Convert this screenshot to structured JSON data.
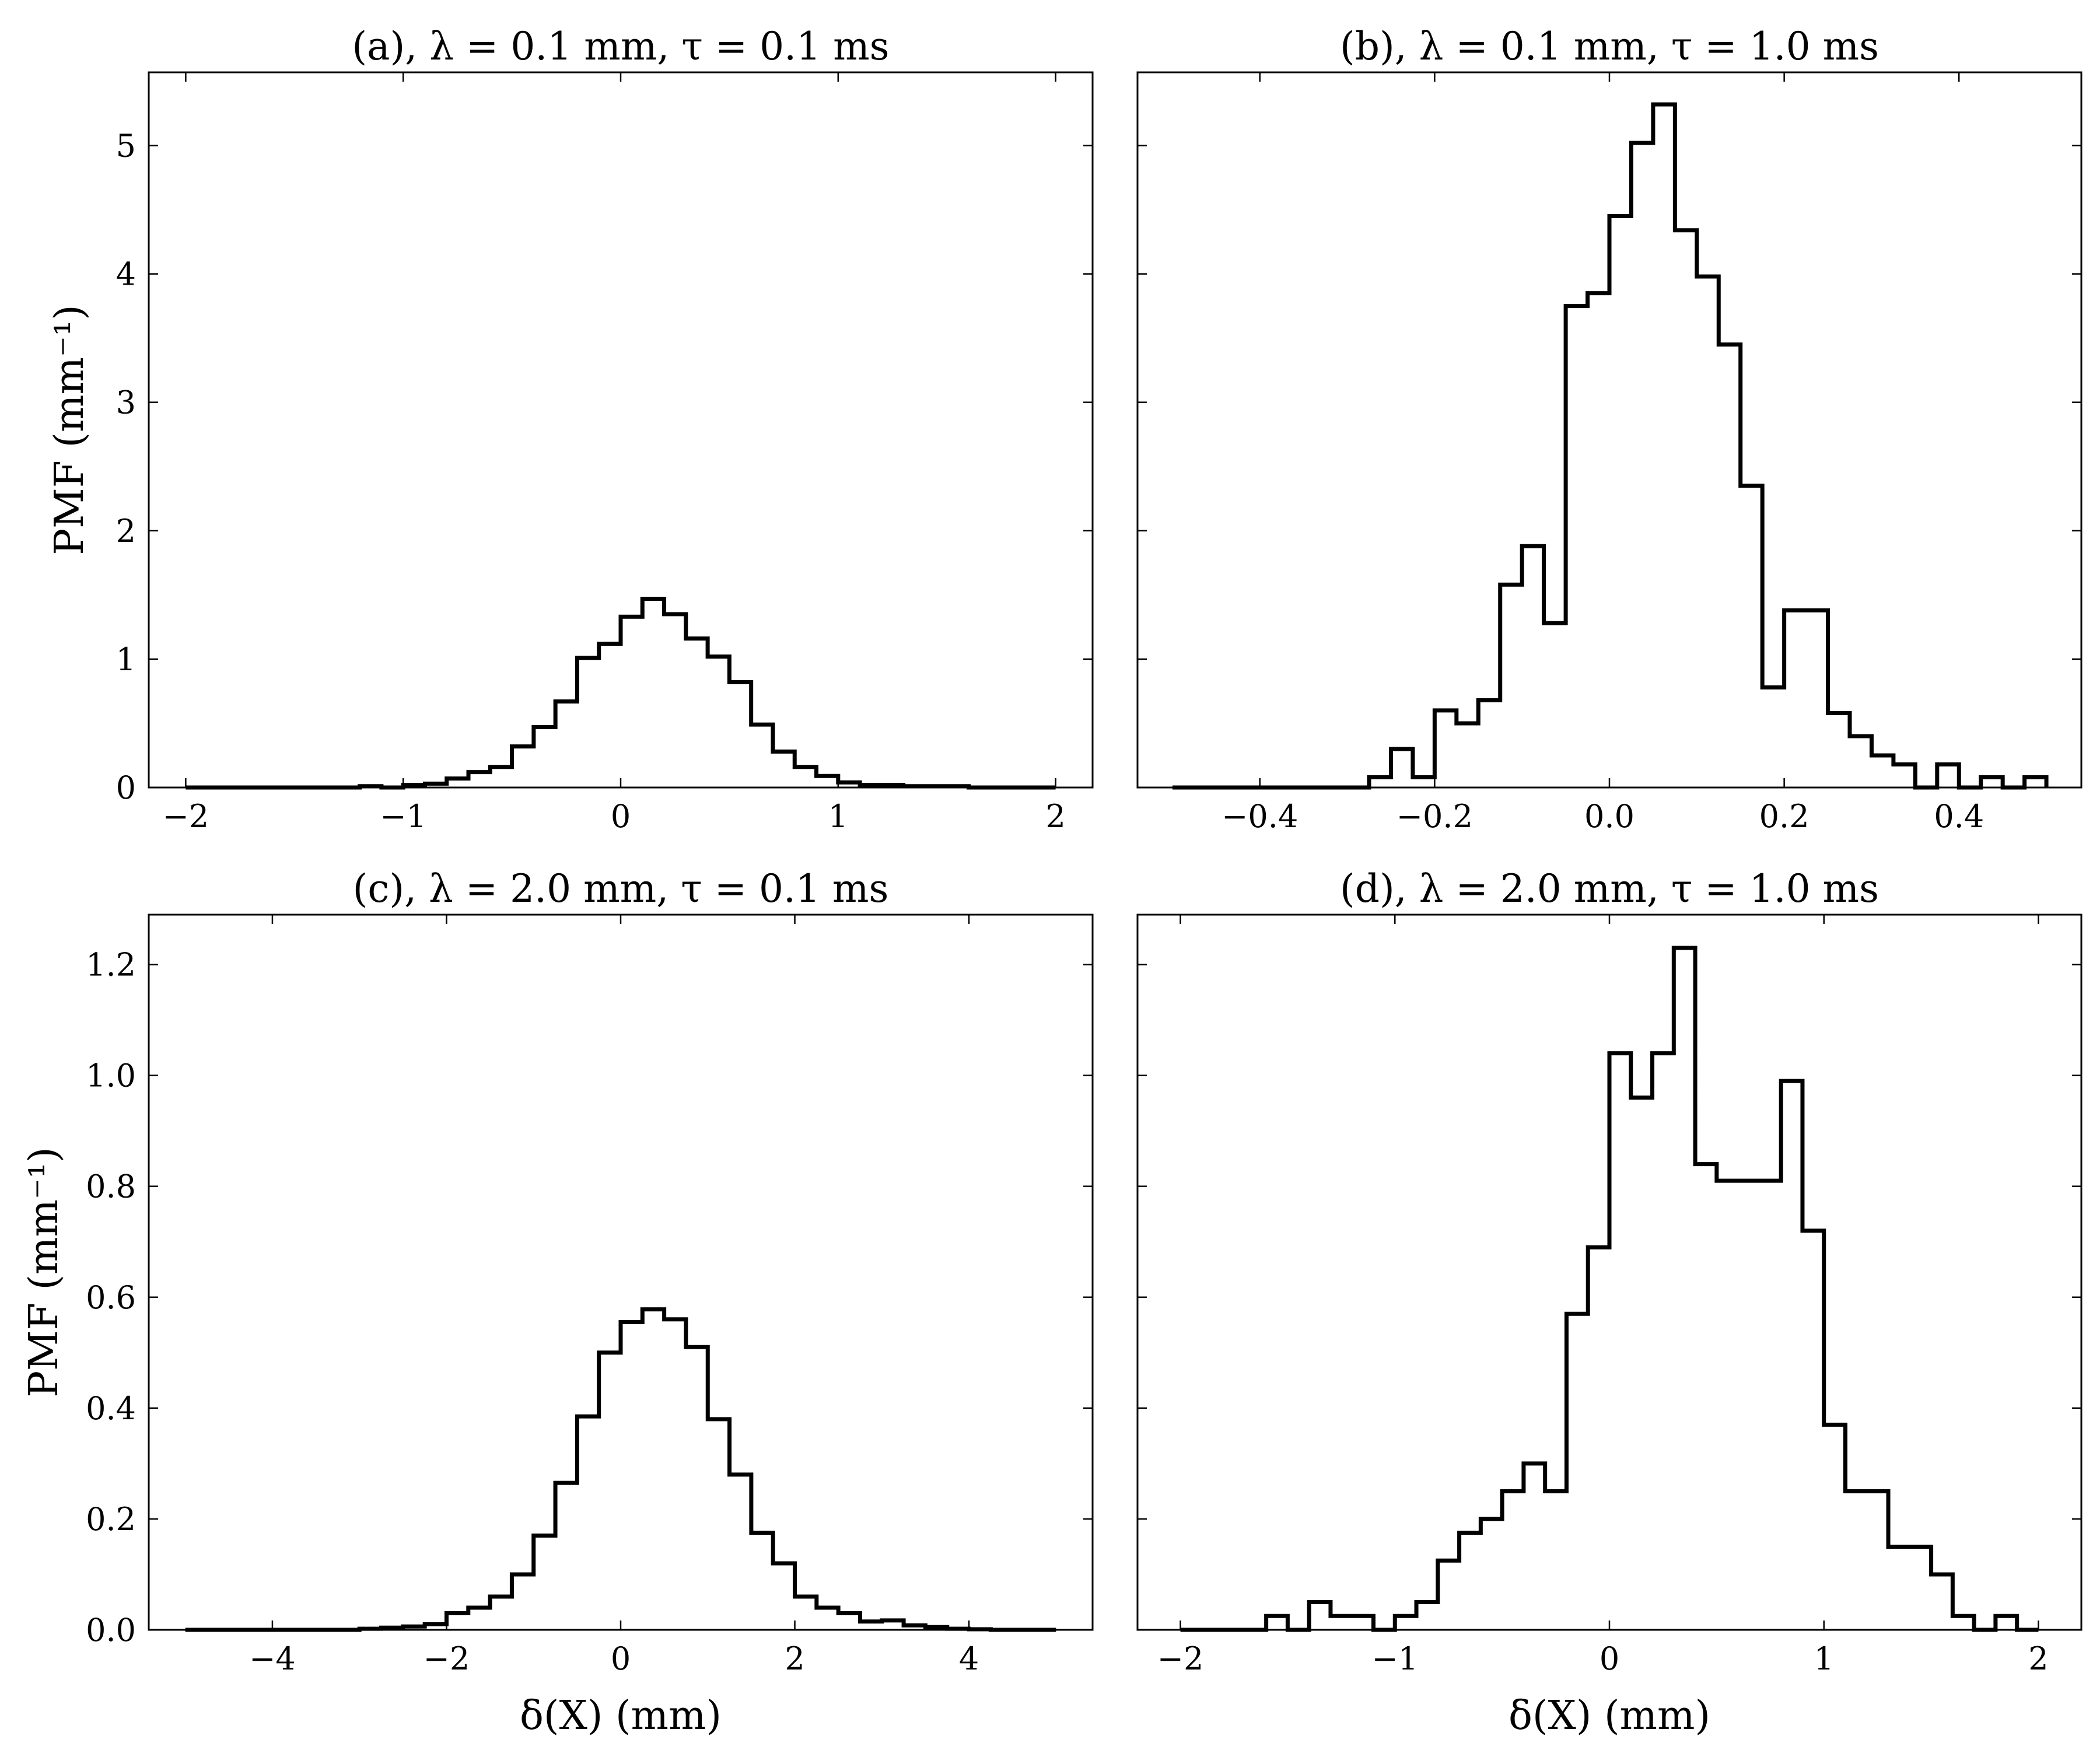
{
  "chart_data": [
    {
      "type": "histogram",
      "title": "(a), λ = 0.1 mm, τ = 0.1 ms",
      "xlabel": "",
      "ylabel": "PMF (mm⁻¹)",
      "xlim": [
        -2.17,
        2.17
      ],
      "ylim": [
        0,
        5.57
      ],
      "xticks": [
        -2,
        -1,
        0,
        1,
        2
      ],
      "xtick_labels": [
        "−2",
        "−1",
        "0",
        "1",
        "2"
      ],
      "yticks": [
        0,
        1,
        2,
        3,
        4,
        5
      ],
      "ytick_labels": [
        "0",
        "1",
        "2",
        "3",
        "4",
        "5"
      ],
      "grid": false,
      "bin_edges": [
        -2.0,
        -1.9,
        -1.8,
        -1.7,
        -1.6,
        -1.5,
        -1.4,
        -1.3,
        -1.2,
        -1.1,
        -1.0,
        -0.9,
        -0.8,
        -0.7,
        -0.6,
        -0.5,
        -0.4,
        -0.3,
        -0.2,
        -0.1,
        0.0,
        0.1,
        0.2,
        0.3,
        0.4,
        0.5,
        0.6,
        0.7,
        0.8,
        0.9,
        1.0,
        1.1,
        1.2,
        1.3,
        1.4,
        1.5,
        1.6,
        1.7,
        1.8,
        1.9,
        2.0
      ],
      "values": [
        0.0,
        0.0,
        0.0,
        0.0,
        0.0,
        0.0,
        0.0,
        0.0,
        0.01,
        0.0,
        0.02,
        0.03,
        0.07,
        0.12,
        0.16,
        0.32,
        0.47,
        0.67,
        1.01,
        1.12,
        1.33,
        1.47,
        1.35,
        1.16,
        1.02,
        0.82,
        0.49,
        0.28,
        0.16,
        0.09,
        0.04,
        0.02,
        0.02,
        0.01,
        0.01,
        0.01,
        0.0,
        0.0,
        0.0,
        0.0
      ]
    },
    {
      "type": "histogram",
      "title": "(b), λ = 0.1 mm, τ = 1.0 ms",
      "xlabel": "",
      "ylabel": "",
      "xlim": [
        -0.54,
        0.54
      ],
      "ylim": [
        0,
        5.57
      ],
      "xticks": [
        -0.4,
        -0.2,
        0.0,
        0.2,
        0.4
      ],
      "xtick_labels": [
        "−0.4",
        "−0.2",
        "0.0",
        "0.2",
        "0.4"
      ],
      "yticks": [
        0,
        1,
        2,
        3,
        4,
        5
      ],
      "ytick_labels": [],
      "grid": false,
      "bin_edges": [
        -0.5,
        -0.475,
        -0.45,
        -0.425,
        -0.4,
        -0.375,
        -0.35,
        -0.325,
        -0.3,
        -0.275,
        -0.25,
        -0.225,
        -0.2,
        -0.175,
        -0.15,
        -0.125,
        -0.1,
        -0.075,
        -0.05,
        -0.025,
        0.0,
        0.025,
        0.05,
        0.075,
        0.1,
        0.125,
        0.15,
        0.175,
        0.2,
        0.225,
        0.25,
        0.275,
        0.3,
        0.325,
        0.35,
        0.375,
        0.4,
        0.425,
        0.45,
        0.475,
        0.5
      ],
      "values": [
        0.0,
        0.0,
        0.0,
        0.0,
        0.0,
        0.0,
        0.0,
        0.0,
        0.0,
        0.08,
        0.3,
        0.08,
        0.6,
        0.5,
        0.68,
        1.58,
        1.88,
        1.28,
        3.75,
        3.85,
        4.45,
        5.02,
        5.32,
        4.34,
        3.98,
        3.45,
        2.35,
        0.78,
        1.38,
        1.38,
        0.58,
        0.4,
        0.25,
        0.18,
        0.0,
        0.18,
        0.0,
        0.08,
        0.0,
        0.08
      ]
    },
    {
      "type": "histogram",
      "title": "(c), λ = 2.0 mm, τ = 0.1 ms",
      "xlabel": "δ(X) (mm)",
      "ylabel": "PMF (mm⁻¹)",
      "xlim": [
        -5.42,
        5.42
      ],
      "ylim": [
        0,
        1.29
      ],
      "xticks": [
        -4,
        -2,
        0,
        2,
        4
      ],
      "xtick_labels": [
        "−4",
        "−2",
        "0",
        "2",
        "4"
      ],
      "yticks": [
        0.0,
        0.2,
        0.4,
        0.6,
        0.8,
        1.0,
        1.2
      ],
      "ytick_labels": [
        "0.0",
        "0.2",
        "0.4",
        "0.6",
        "0.8",
        "1.0",
        "1.2"
      ],
      "grid": false,
      "bin_edges": [
        -5.0,
        -4.75,
        -4.5,
        -4.25,
        -4.0,
        -3.75,
        -3.5,
        -3.25,
        -3.0,
        -2.75,
        -2.5,
        -2.25,
        -2.0,
        -1.75,
        -1.5,
        -1.25,
        -1.0,
        -0.75,
        -0.5,
        -0.25,
        0.0,
        0.25,
        0.5,
        0.75,
        1.0,
        1.25,
        1.5,
        1.75,
        2.0,
        2.25,
        2.5,
        2.75,
        3.0,
        3.25,
        3.5,
        3.75,
        4.0,
        4.25,
        4.5,
        4.75,
        5.0
      ],
      "values": [
        0.0,
        0.0,
        0.0,
        0.0,
        0.0,
        0.0,
        0.0,
        0.0,
        0.002,
        0.004,
        0.006,
        0.01,
        0.03,
        0.04,
        0.06,
        0.1,
        0.17,
        0.265,
        0.385,
        0.5,
        0.555,
        0.578,
        0.56,
        0.51,
        0.38,
        0.28,
        0.175,
        0.12,
        0.06,
        0.04,
        0.03,
        0.015,
        0.017,
        0.008,
        0.005,
        0.002,
        0.001,
        0.0,
        0.0,
        0.0
      ]
    },
    {
      "type": "histogram",
      "title": "(d), λ = 2.0 mm, τ = 1.0 ms",
      "xlabel": "δ(X) (mm)",
      "ylabel": "",
      "xlim": [
        -2.2,
        2.2
      ],
      "ylim": [
        0,
        1.29
      ],
      "xticks": [
        -2,
        -1,
        0,
        1,
        2
      ],
      "xtick_labels": [
        "−2",
        "−1",
        "0",
        "1",
        "2"
      ],
      "yticks": [
        0.0,
        0.2,
        0.4,
        0.6,
        0.8,
        1.0,
        1.2
      ],
      "ytick_labels": [],
      "grid": false,
      "bin_edges": [
        -2.0,
        -1.9,
        -1.8,
        -1.7,
        -1.6,
        -1.5,
        -1.4,
        -1.3,
        -1.2,
        -1.1,
        -1.0,
        -0.9,
        -0.8,
        -0.7,
        -0.6,
        -0.5,
        -0.4,
        -0.3,
        -0.2,
        -0.1,
        0.0,
        0.1,
        0.2,
        0.3,
        0.4,
        0.5,
        0.6,
        0.7,
        0.8,
        0.9,
        1.0,
        1.1,
        1.2,
        1.3,
        1.4,
        1.5,
        1.6,
        1.7,
        1.8,
        1.9,
        2.0
      ],
      "values": [
        0.0,
        0.0,
        0.0,
        0.0,
        0.025,
        0.0,
        0.05,
        0.025,
        0.025,
        0.0,
        0.025,
        0.05,
        0.125,
        0.175,
        0.2,
        0.25,
        0.3,
        0.25,
        0.57,
        0.69,
        1.04,
        0.96,
        1.04,
        1.23,
        0.84,
        0.81,
        0.81,
        0.81,
        0.99,
        0.72,
        0.37,
        0.25,
        0.25,
        0.15,
        0.15,
        0.1,
        0.025,
        0.0,
        0.025,
        0.0
      ]
    }
  ]
}
